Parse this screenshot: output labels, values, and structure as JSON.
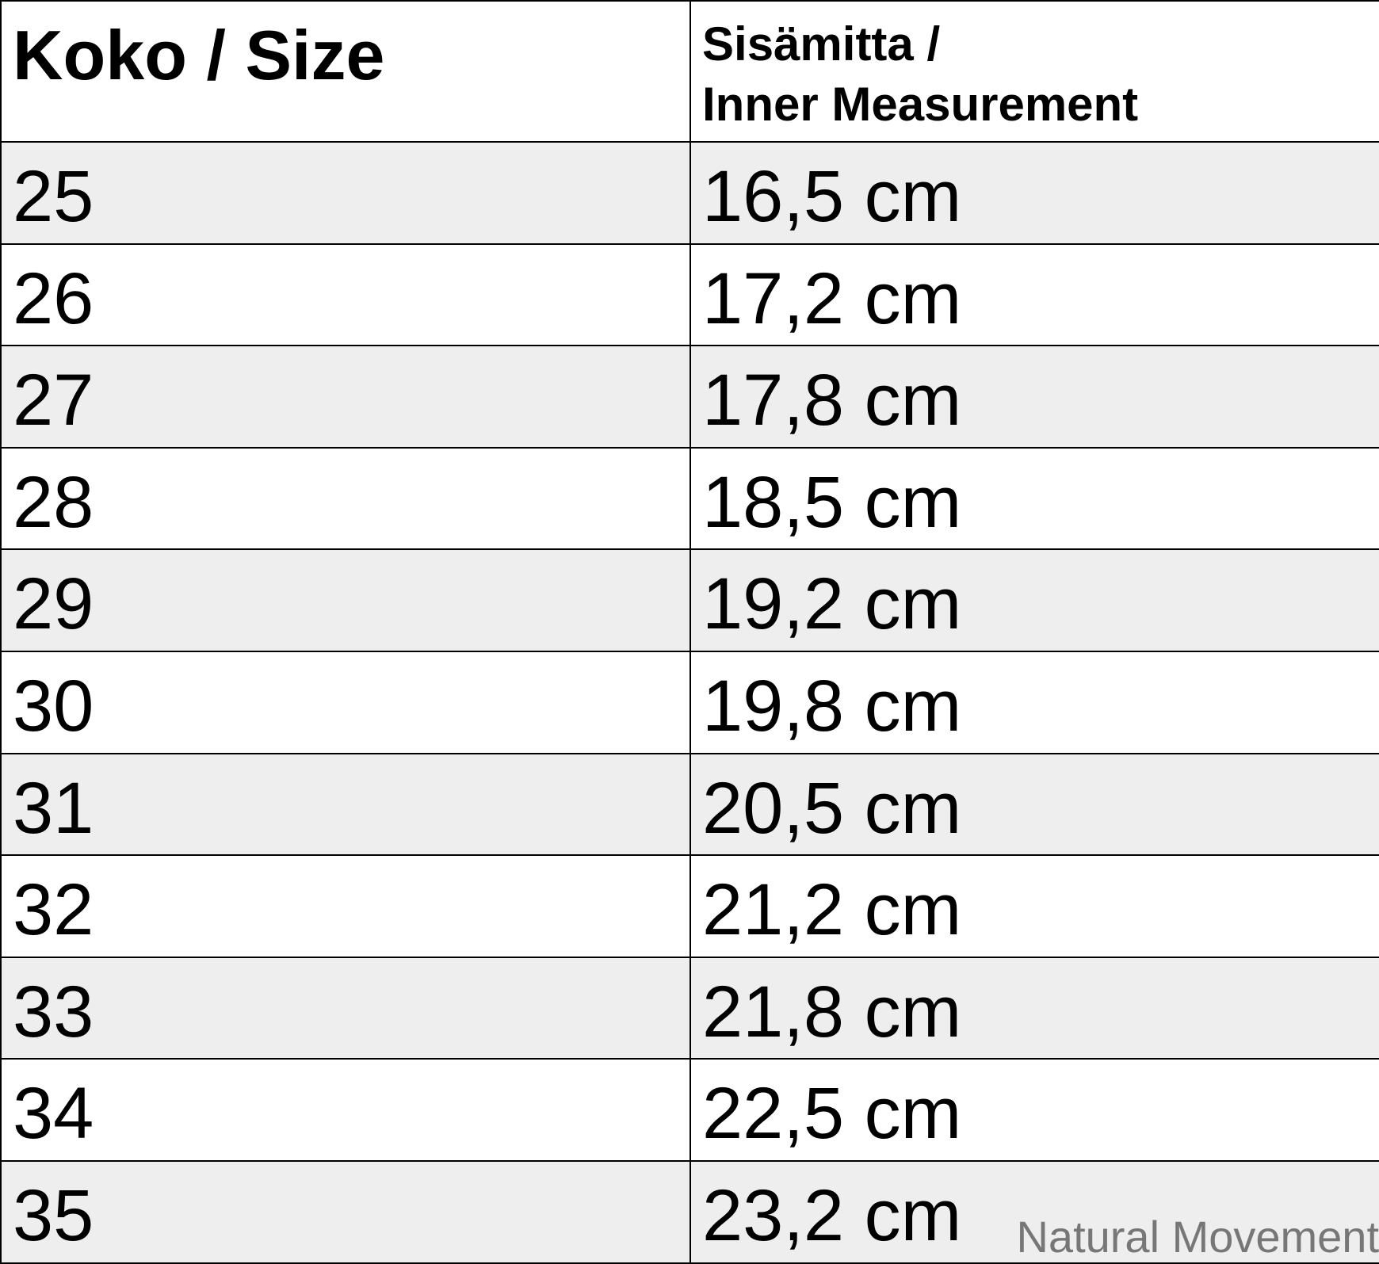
{
  "table": {
    "headers": {
      "size": "Koko / Size",
      "measurement_line1": "Sisämitta /",
      "measurement_line2": "Inner Measurement"
    },
    "rows": [
      {
        "size": "25",
        "measurement": "16,5 cm"
      },
      {
        "size": "26",
        "measurement": "17,2 cm"
      },
      {
        "size": "27",
        "measurement": "17,8 cm"
      },
      {
        "size": "28",
        "measurement": "18,5 cm"
      },
      {
        "size": "29",
        "measurement": "19,2 cm"
      },
      {
        "size": "30",
        "measurement": "19,8 cm"
      },
      {
        "size": "31",
        "measurement": "20,5 cm"
      },
      {
        "size": "32",
        "measurement": "21,2 cm"
      },
      {
        "size": "33",
        "measurement": "21,8 cm"
      },
      {
        "size": "34",
        "measurement": "22,5 cm"
      },
      {
        "size": "35",
        "measurement": "23,2 cm"
      }
    ]
  },
  "watermark": "Natural Movement",
  "colors": {
    "stripe": "#eeeeee",
    "watermark": "#777777"
  }
}
